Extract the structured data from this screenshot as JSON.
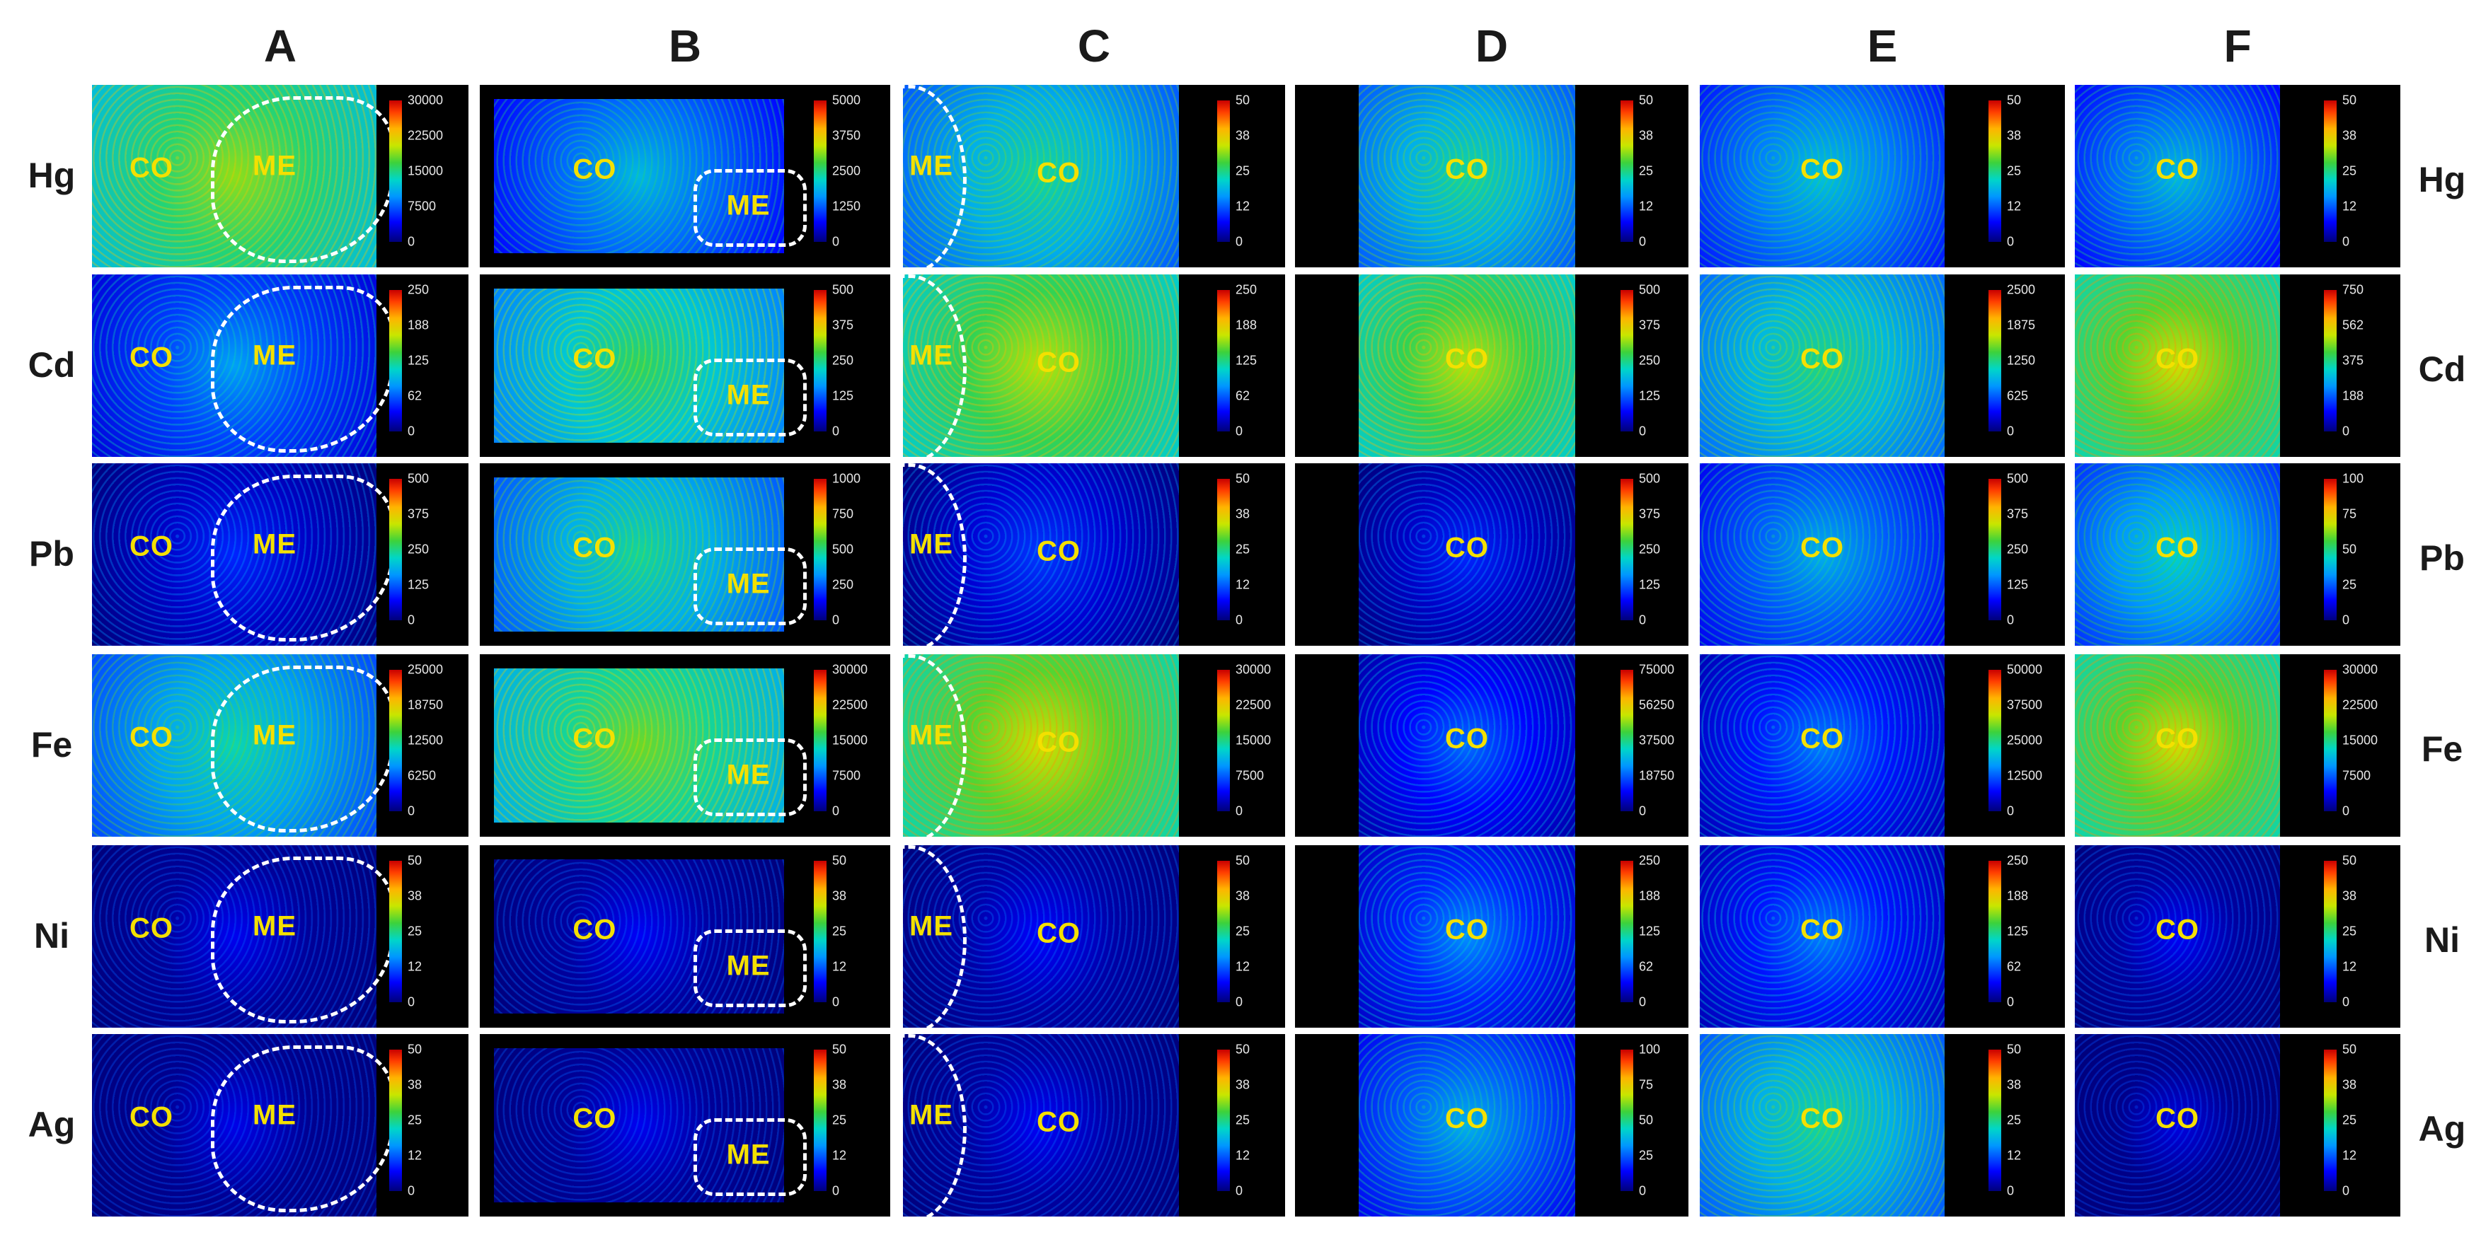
{
  "columns": [
    "A",
    "B",
    "C",
    "D",
    "E",
    "F"
  ],
  "rows": [
    "Hg",
    "Cd",
    "Pb",
    "Fe",
    "Ni",
    "Ag"
  ],
  "region_labels": {
    "co": "CO",
    "me": "ME"
  },
  "colorbars": [
    [
      [
        "30000",
        "22500",
        "15000",
        "7500",
        "0"
      ],
      [
        "5000",
        "3750",
        "2500",
        "1250",
        "0"
      ],
      [
        "50",
        "38",
        "25",
        "12",
        "0"
      ],
      [
        "50",
        "38",
        "25",
        "12",
        "0"
      ],
      [
        "50",
        "38",
        "25",
        "12",
        "0"
      ],
      [
        "50",
        "38",
        "25",
        "12",
        "0"
      ]
    ],
    [
      [
        "250",
        "188",
        "125",
        "62",
        "0"
      ],
      [
        "500",
        "375",
        "250",
        "125",
        "0"
      ],
      [
        "250",
        "188",
        "125",
        "62",
        "0"
      ],
      [
        "500",
        "375",
        "250",
        "125",
        "0"
      ],
      [
        "2500",
        "1875",
        "1250",
        "625",
        "0"
      ],
      [
        "750",
        "562",
        "375",
        "188",
        "0"
      ]
    ],
    [
      [
        "500",
        "375",
        "250",
        "125",
        "0"
      ],
      [
        "1000",
        "750",
        "500",
        "250",
        "0"
      ],
      [
        "50",
        "38",
        "25",
        "12",
        "0"
      ],
      [
        "500",
        "375",
        "250",
        "125",
        "0"
      ],
      [
        "500",
        "375",
        "250",
        "125",
        "0"
      ],
      [
        "100",
        "75",
        "50",
        "25",
        "0"
      ]
    ],
    [
      [
        "25000",
        "18750",
        "12500",
        "6250",
        "0"
      ],
      [
        "30000",
        "22500",
        "15000",
        "7500",
        "0"
      ],
      [
        "30000",
        "22500",
        "15000",
        "7500",
        "0"
      ],
      [
        "75000",
        "56250",
        "37500",
        "18750",
        "0"
      ],
      [
        "50000",
        "37500",
        "25000",
        "12500",
        "0"
      ],
      [
        "30000",
        "22500",
        "15000",
        "7500",
        "0"
      ]
    ],
    [
      [
        "50",
        "38",
        "25",
        "12",
        "0"
      ],
      [
        "50",
        "38",
        "25",
        "12",
        "0"
      ],
      [
        "50",
        "38",
        "25",
        "12",
        "0"
      ],
      [
        "250",
        "188",
        "125",
        "62",
        "0"
      ],
      [
        "250",
        "188",
        "125",
        "62",
        "0"
      ],
      [
        "50",
        "38",
        "25",
        "12",
        "0"
      ]
    ],
    [
      [
        "50",
        "38",
        "25",
        "12",
        "0"
      ],
      [
        "50",
        "38",
        "25",
        "12",
        "0"
      ],
      [
        "50",
        "38",
        "25",
        "12",
        "0"
      ],
      [
        "100",
        "75",
        "50",
        "25",
        "0"
      ],
      [
        "50",
        "38",
        "25",
        "12",
        "0"
      ],
      [
        "50",
        "38",
        "25",
        "12",
        "0"
      ]
    ]
  ],
  "intensity": [
    [
      0.55,
      0.3,
      0.4,
      0.4,
      0.32,
      0.3
    ],
    [
      0.25,
      0.45,
      0.58,
      0.58,
      0.42,
      0.62
    ],
    [
      0.1,
      0.4,
      0.12,
      0.1,
      0.28,
      0.35
    ],
    [
      0.38,
      0.52,
      0.62,
      0.18,
      0.2,
      0.62
    ],
    [
      0.04,
      0.05,
      0.06,
      0.22,
      0.2,
      0.05
    ],
    [
      0.03,
      0.04,
      0.05,
      0.28,
      0.4,
      0.02
    ]
  ],
  "colors": {
    "label": "#f4e000",
    "outline": "#ffffff",
    "background": "#000000"
  }
}
